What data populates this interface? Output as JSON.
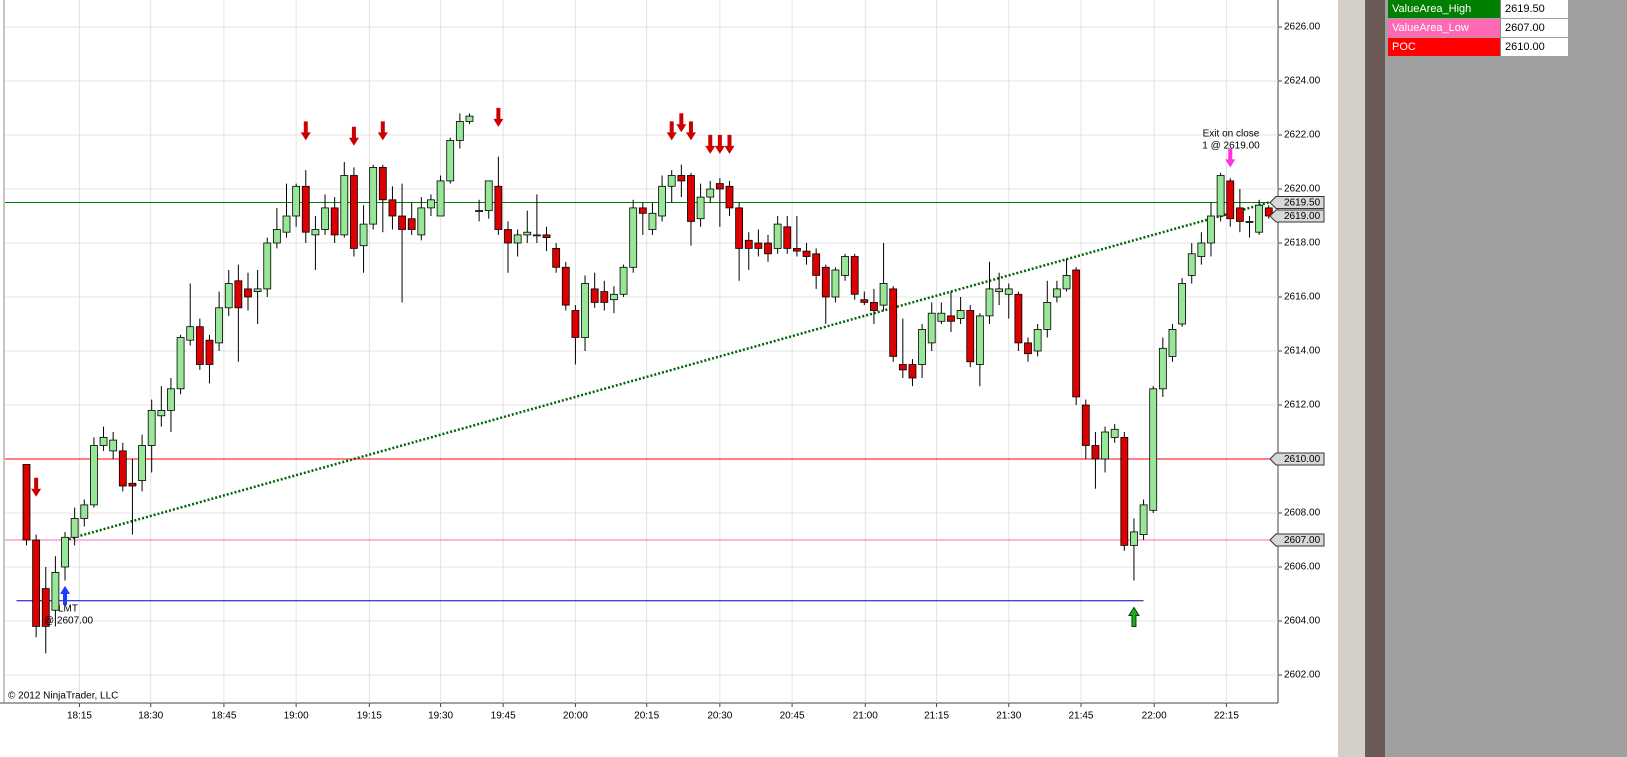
{
  "chart_data": {
    "type": "candlestick",
    "categories": [
      null,
      null,
      null,
      null,
      null,
      null,
      null,
      null,
      null,
      null,
      null,
      null,
      null,
      null,
      null,
      null,
      null,
      null,
      null,
      null,
      null,
      null,
      null,
      null,
      null,
      null,
      null,
      null,
      null,
      null,
      null,
      null,
      null,
      null,
      null,
      null,
      null,
      null,
      null,
      null,
      null,
      null,
      null,
      null,
      null,
      null,
      null,
      null,
      null,
      null,
      null,
      null,
      null,
      null,
      null,
      null,
      null,
      null,
      null,
      null,
      null,
      null,
      null,
      null,
      null,
      null,
      null,
      null,
      null,
      null,
      null,
      null,
      null,
      null,
      null,
      null,
      null,
      null,
      null,
      null,
      null,
      null,
      null,
      null,
      null,
      null,
      null,
      null,
      null,
      null,
      null,
      null,
      null,
      null,
      null,
      null,
      null,
      null,
      null,
      null,
      null,
      null,
      null,
      null,
      null,
      null,
      null,
      null,
      null,
      null,
      null,
      null,
      null,
      null,
      null,
      null,
      null,
      null,
      null,
      null,
      null,
      null,
      null,
      null,
      null,
      null,
      null,
      null,
      null,
      null
    ],
    "open": [
      2609.8,
      2607,
      2605.2,
      2604.4,
      2606,
      2607.1,
      2607.8,
      2608.3,
      2610.5,
      2610.3,
      2610.3,
      2609.1,
      2609.2,
      2610.5,
      2611.6,
      2611.8,
      2612.6,
      2614.4,
      2614.9,
      2614.4,
      2614.3,
      2615.6,
      2616.6,
      2616.3,
      2616.2,
      2616.3,
      2618,
      2618.4,
      2619,
      2620.1,
      2618.3,
      2618.5,
      2619.3,
      2618.3,
      2620.5,
      2617.9,
      2618.7,
      2620.8,
      2619.6,
      2619,
      2618.9,
      2618.3,
      2619.3,
      2619,
      2620.3,
      2621.8,
      2622.5,
      2619.2,
      2619.2,
      2620.1,
      2618.5,
      2618,
      2618.3,
      2618.3,
      2618.3,
      2617.8,
      2617.1,
      2615.5,
      2614.5,
      2616.3,
      2616.2,
      2615.9,
      2616.1,
      2617.1,
      2619.3,
      2618.5,
      2619,
      2620.1,
      2620.5,
      2620.5,
      2618.9,
      2619.7,
      2620.2,
      2620.1,
      2619.3,
      2618.1,
      2618,
      2618,
      2617.8,
      2618.6,
      2617.8,
      2617.7,
      2617.6,
      2617.1,
      2616,
      2616.8,
      2617.5,
      2615.9,
      2615.8,
      2615.7,
      2616.3,
      2613.5,
      2613.5,
      2613.5,
      2614.3,
      2615.1,
      2615.3,
      2615.2,
      2615.5,
      2613.5,
      2615.3,
      2616.2,
      2616.1,
      2616.1,
      2614.3,
      2614,
      2614.8,
      2616,
      2616.3,
      2617,
      2612,
      2610.5,
      2610,
      2610.8,
      2610.8,
      2606.8,
      2607.2,
      2608.1,
      2612.6,
      2613.8,
      2615,
      2616.8,
      2617.5,
      2618,
      2619,
      2620.3,
      2619.3,
      2618.8,
      2618.4,
      2619.3
    ],
    "high": [
      2609.8,
      2607.2,
      2606,
      2606.4,
      2607.3,
      2608.2,
      2608.5,
      2610.8,
      2611.2,
      2611,
      2610.6,
      2610,
      2610.9,
      2612.2,
      2612.7,
      2613,
      2614.6,
      2616.5,
      2615.2,
      2614.6,
      2616.2,
      2617,
      2617.2,
      2616.9,
      2617,
      2618.2,
      2619.3,
      2620.2,
      2620.2,
      2620.7,
      2619,
      2619.8,
      2619.7,
      2621,
      2620.8,
      2619.4,
      2620.9,
      2620.9,
      2620.1,
      2620.2,
      2619.5,
      2619.7,
      2619.8,
      2620.5,
      2621.9,
      2622.8,
      2622.8,
      2619.6,
      2620.3,
      2621.2,
      2618.8,
      2618.5,
      2619.2,
      2619.8,
      2618.6,
      2618,
      2617.3,
      2615.7,
      2616.8,
      2616.9,
      2616.6,
      2616.4,
      2617.2,
      2619.6,
      2619.5,
      2619.5,
      2620.5,
      2620.7,
      2620.9,
      2620.6,
      2620.2,
      2620.3,
      2620.4,
      2620.3,
      2619.5,
      2618.4,
      2618.5,
      2618.3,
      2619,
      2619,
      2619,
      2618,
      2617.8,
      2617.2,
      2617.1,
      2617.6,
      2617.6,
      2616.2,
      2616.3,
      2618,
      2616.4,
      2615.2,
      2613.7,
      2615,
      2615.8,
      2615.8,
      2616.2,
      2616,
      2615.7,
      2615.4,
      2617.3,
      2616.9,
      2616.5,
      2616.2,
      2614.5,
      2615,
      2616.6,
      2616.6,
      2617.4,
      2617.1,
      2612.2,
      2611,
      2611.2,
      2611.3,
      2611,
      2607.8,
      2608.5,
      2612.7,
      2614.5,
      2615,
      2616.7,
      2618,
      2618.4,
      2619.5,
      2620.6,
      2620.4,
      2620,
      2619,
      2619.6,
      2619.4
    ],
    "low": [
      2606.8,
      2603.4,
      2602.8,
      2603.8,
      2605.5,
      2606.8,
      2607.5,
      2608.2,
      2610.3,
      2610,
      2608.8,
      2607.2,
      2608.8,
      2609.5,
      2611.2,
      2611,
      2612.4,
      2614.2,
      2613.3,
      2612.8,
      2614,
      2615.3,
      2613.6,
      2615.5,
      2615,
      2616,
      2617.8,
      2618.2,
      2618.6,
      2618,
      2617,
      2618.3,
      2618,
      2618.2,
      2617.5,
      2616.9,
      2618.5,
      2618.4,
      2618.5,
      2615.8,
      2618.3,
      2618.1,
      2619,
      2619,
      2620.2,
      2621.5,
      2622.4,
      2618.8,
      2618.9,
      2618.3,
      2616.9,
      2617.5,
      2618,
      2618,
      2617.7,
      2616.9,
      2615.5,
      2613.5,
      2614,
      2615.6,
      2615.5,
      2615.4,
      2616,
      2616.9,
      2618.3,
      2618.3,
      2618.8,
      2619.5,
      2619.7,
      2617.9,
      2618.6,
      2619.5,
      2618.6,
      2619,
      2616.6,
      2617,
      2617.5,
      2617.3,
      2617.6,
      2617.6,
      2617.5,
      2617.2,
      2616.3,
      2615,
      2615.8,
      2616.6,
      2615.9,
      2615.7,
      2615,
      2615.5,
      2613.6,
      2613,
      2612.7,
      2613,
      2614,
      2615,
      2614.7,
      2615,
      2613.4,
      2612.7,
      2615,
      2615.7,
      2615.2,
      2614,
      2613.6,
      2613.8,
      2614.5,
      2615.8,
      2616.2,
      2612,
      2610,
      2608.9,
      2609.5,
      2610.6,
      2606.6,
      2605.5,
      2607,
      2608,
      2612.3,
      2613.6,
      2614.9,
      2616.5,
      2617.2,
      2617.5,
      2618.8,
      2618.6,
      2618.4,
      2618.2,
      2618.3,
      2618.9
    ],
    "close": [
      2607,
      2603.8,
      2603.8,
      2605.8,
      2607.1,
      2607.8,
      2608.3,
      2610.5,
      2610.8,
      2610.7,
      2609,
      2609,
      2610.5,
      2611.8,
      2611.8,
      2612.6,
      2614.5,
      2614.9,
      2613.5,
      2613.5,
      2615.6,
      2616.5,
      2615.6,
      2616,
      2616.3,
      2618,
      2618.5,
      2619,
      2620.1,
      2618.4,
      2618.5,
      2619.3,
      2618.3,
      2620.5,
      2617.8,
      2618.7,
      2620.8,
      2619.6,
      2619,
      2618.5,
      2618.5,
      2619.3,
      2619.6,
      2620.3,
      2621.8,
      2622.5,
      2622.7,
      2619.2,
      2620.3,
      2618.5,
      2618,
      2618.3,
      2618.4,
      2618.3,
      2618.2,
      2617.1,
      2615.7,
      2614.5,
      2616.5,
      2615.8,
      2615.8,
      2616.1,
      2617.1,
      2619.3,
      2619.1,
      2619.1,
      2620.1,
      2620.5,
      2620.3,
      2618.8,
      2619.7,
      2620,
      2620,
      2619.3,
      2617.8,
      2617.8,
      2617.8,
      2617.6,
      2618.7,
      2617.8,
      2617.7,
      2617.5,
      2616.8,
      2616,
      2617,
      2617.5,
      2616.1,
      2615.8,
      2615.5,
      2616.5,
      2613.8,
      2613.3,
      2613,
      2614.8,
      2615.4,
      2615.4,
      2615.1,
      2615.5,
      2613.6,
      2615.3,
      2616.3,
      2616.3,
      2616.3,
      2614.3,
      2613.9,
      2614.8,
      2615.8,
      2616.3,
      2616.8,
      2612.3,
      2610.5,
      2610,
      2611,
      2611.1,
      2606.8,
      2607.3,
      2608.3,
      2612.6,
      2614.1,
      2614.8,
      2616.5,
      2617.6,
      2618,
      2619,
      2620.5,
      2618.9,
      2618.8,
      2618.8,
      2619.4,
      2619
    ],
    "up_color": "#98e698",
    "down_color": "#dd0000",
    "ylim": [
      2601,
      2627
    ],
    "yticks": [
      {
        "value": 2602,
        "label": "2602.00"
      },
      {
        "value": 2604,
        "label": "2604.00"
      },
      {
        "value": 2606,
        "label": "2606.00"
      },
      {
        "value": 2608,
        "label": "2608.00"
      },
      {
        "value": 2610,
        "label": "2610.00"
      },
      {
        "value": 2612,
        "label": "2612.00"
      },
      {
        "value": 2614,
        "label": "2614.00"
      },
      {
        "value": 2616,
        "label": "2616.00"
      },
      {
        "value": 2618,
        "label": "2618.00"
      },
      {
        "value": 2620,
        "label": "2620.00"
      },
      {
        "value": 2622,
        "label": "2622.00"
      },
      {
        "value": 2624,
        "label": "2624.00"
      },
      {
        "value": 2626,
        "label": "2626.00"
      }
    ],
    "xticks": [
      {
        "value": 5.5,
        "label": "18:15"
      },
      {
        "value": 12.9,
        "label": "18:30"
      },
      {
        "value": 20.5,
        "label": "18:45"
      },
      {
        "value": 28,
        "label": "19:00"
      },
      {
        "value": 35.6,
        "label": "19:15"
      },
      {
        "value": 43,
        "label": "19:30"
      },
      {
        "value": 49.5,
        "label": "19:45"
      },
      {
        "value": 57,
        "label": "20:00"
      },
      {
        "value": 64.4,
        "label": "20:15"
      },
      {
        "value": 72,
        "label": "20:30"
      },
      {
        "value": 79.5,
        "label": "20:45"
      },
      {
        "value": 87.1,
        "label": "21:00"
      },
      {
        "value": 94.5,
        "label": "21:15"
      },
      {
        "value": 102,
        "label": "21:30"
      },
      {
        "value": 109.5,
        "label": "21:45"
      },
      {
        "value": 117.1,
        "label": "22:00"
      },
      {
        "value": 124.6,
        "label": "22:15"
      }
    ],
    "grid": true,
    "lines": [
      {
        "name": "ValueArea_High",
        "value": 2619.5,
        "value_label": "2619.50",
        "color": "#008000"
      },
      {
        "name": "ValueArea_Low",
        "value": 2607,
        "value_label": "2607.00",
        "color": "#ff69b4"
      },
      {
        "name": "POC",
        "value": 2610,
        "value_label": "2610.00",
        "color": "#ff0000"
      }
    ],
    "stop_line": {
      "value": 2604.75,
      "x": [
        0,
        116
      ],
      "color": "#0000cd"
    },
    "last_price": {
      "value": 2619,
      "label": "2619.00"
    },
    "trendline": {
      "x": [
        4,
        129
      ],
      "values": [
        2607,
        2619.5
      ],
      "color": "#006400"
    },
    "signals": [
      {
        "x": 1,
        "y": 2608.6,
        "dir": "down",
        "color": "#cc0000"
      },
      {
        "x": 29,
        "y": 2621.8,
        "dir": "down",
        "color": "#cc0000"
      },
      {
        "x": 34,
        "y": 2621.6,
        "dir": "down",
        "color": "#cc0000"
      },
      {
        "x": 37,
        "y": 2621.8,
        "dir": "down",
        "color": "#cc0000"
      },
      {
        "x": 49,
        "y": 2622.3,
        "dir": "down",
        "color": "#cc0000"
      },
      {
        "x": 67,
        "y": 2621.8,
        "dir": "down",
        "color": "#cc0000"
      },
      {
        "x": 68,
        "y": 2622.1,
        "dir": "down",
        "color": "#cc0000"
      },
      {
        "x": 69,
        "y": 2621.8,
        "dir": "down",
        "color": "#cc0000"
      },
      {
        "x": 71,
        "y": 2621.3,
        "dir": "down",
        "color": "#cc0000"
      },
      {
        "x": 72,
        "y": 2621.3,
        "dir": "down",
        "color": "#cc0000"
      },
      {
        "x": 73,
        "y": 2621.3,
        "dir": "down",
        "color": "#cc0000"
      },
      {
        "x": 4,
        "y": 2605.3,
        "dir": "up",
        "color": "#1a3cff"
      },
      {
        "x": 115,
        "y": 2604.5,
        "dir": "up",
        "color": "#22aa22"
      },
      {
        "x": 125,
        "y": 2620.8,
        "dir": "down",
        "color": "#ff33dd"
      }
    ],
    "entry_text": [
      "LMT",
      "@ 2607.00"
    ],
    "exit_text": [
      "Exit on close",
      "1 @ 2619.00"
    ],
    "copyright": "© 2012 NinjaTrader, LLC"
  },
  "table": {
    "rows": [
      [
        "ValueArea_High",
        "2619.50"
      ],
      [
        "ValueArea_Low",
        "2607.00"
      ],
      [
        "POC",
        "2610.00"
      ]
    ]
  }
}
